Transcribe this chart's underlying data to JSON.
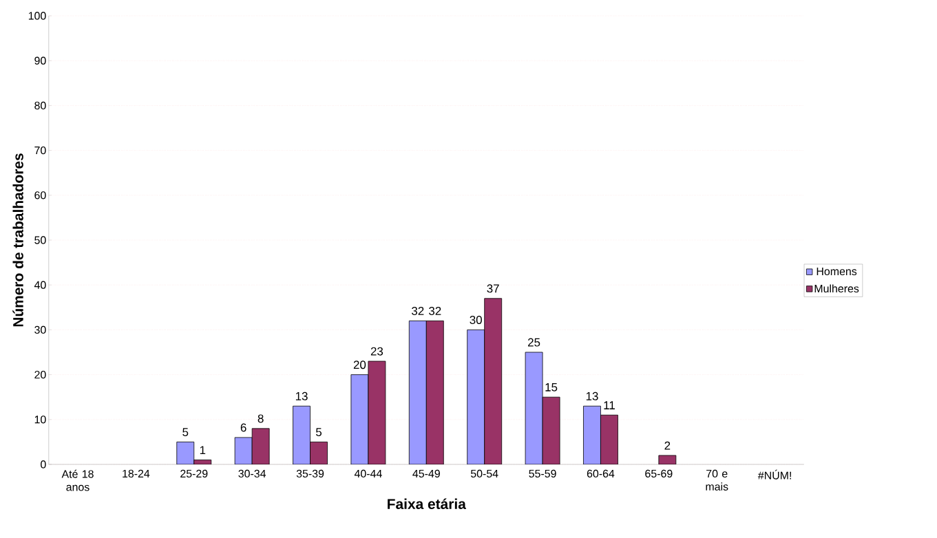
{
  "chart_data": {
    "type": "bar",
    "xlabel": "Faixa etária",
    "ylabel": "Número de trabalhadores",
    "categories": [
      "Até 18 anos",
      "18-24",
      "25-29",
      "30-34",
      "35-39",
      "40-44",
      "45-49",
      "50-54",
      "55-59",
      "60-64",
      "65-69",
      "70 e mais",
      "#NÚM!"
    ],
    "series": [
      {
        "name": "Homens",
        "color": "#9999ff",
        "values": [
          null,
          null,
          5,
          6,
          13,
          20,
          32,
          30,
          25,
          13,
          null,
          null,
          null
        ]
      },
      {
        "name": "Mulheres",
        "color": "#993366",
        "values": [
          null,
          null,
          1,
          8,
          5,
          23,
          32,
          37,
          15,
          11,
          2,
          null,
          null
        ]
      }
    ],
    "ylim": [
      0,
      100
    ],
    "yticks": [
      0,
      10,
      20,
      30,
      40,
      50,
      60,
      70,
      80,
      90,
      100
    ],
    "grid": "y",
    "legend": "right",
    "data_labels": true
  }
}
